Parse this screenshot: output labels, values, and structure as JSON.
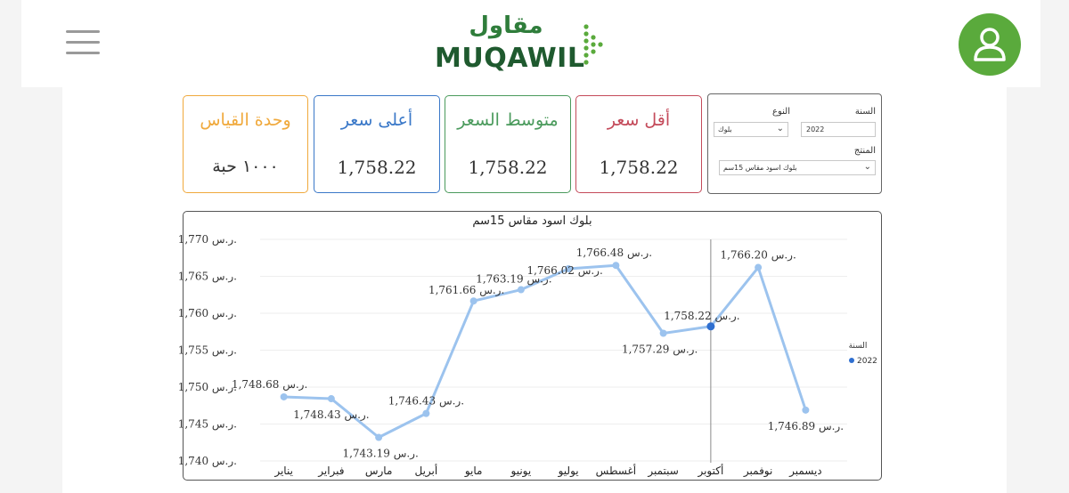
{
  "header": {
    "logo_arabic": "مقاول",
    "logo_english": "MUQAWIL"
  },
  "cards": [
    {
      "title": "وحدة القياس",
      "value": "١٠٠٠ حبة",
      "color": "#f0a93c"
    },
    {
      "title": "أعلى سعر",
      "value": "1,758.22",
      "color": "#3a78c8"
    },
    {
      "title": "متوسط السعر",
      "value": "1,758.22",
      "color": "#4a9a5c"
    },
    {
      "title": "أقل سعر",
      "value": "1,758.22",
      "color": "#c44a5a"
    }
  ],
  "filters": {
    "year_label": "السنة",
    "year_value": "2022",
    "type_label": "النوع",
    "type_value": "بلوك",
    "product_label": "المنتج",
    "product_value": "بلوك اسود مقاس 15سم"
  },
  "chart_data": {
    "type": "line",
    "title": "بلوك اسود مقاس 15سم",
    "categories": [
      "يناير",
      "فبراير",
      "مارس",
      "أبريل",
      "مايو",
      "يونيو",
      "يوليو",
      "أغسطس",
      "سبتمبر",
      "أكتوبر",
      "نوفمبر",
      "ديسمبر"
    ],
    "series": [
      {
        "name": "2022",
        "values": [
          1748.68,
          1748.43,
          1743.19,
          1746.43,
          1761.66,
          1763.19,
          1766.02,
          1766.48,
          1757.29,
          1758.22,
          1766.2,
          1746.89
        ]
      }
    ],
    "point_labels": [
      "1,748.68 ر.س.",
      "1,748.43 ر.س.",
      "1,743.19 ر.س.",
      "1,746.43 ر.س.",
      "1,761.66 ر.س.",
      "1,763.19 ر.س.",
      "1,766.02 ر.س.",
      "1,766.48 ر.س.",
      "1,757.29 ر.س.",
      "1,758.22 ر.س.",
      "1,766.20 ر.س.",
      "1,746.89 ر.س."
    ],
    "ylim": [
      1740,
      1770
    ],
    "yticks": [
      1740,
      1745,
      1750,
      1755,
      1760,
      1765,
      1770
    ],
    "ytick_labels": [
      "1,740 ر.س.",
      "1,745 ر.س.",
      "1,750 ر.س.",
      "1,755 ر.س.",
      "1,760 ر.س.",
      "1,765 ر.س.",
      "1,770 ر.س."
    ],
    "legend_title": "السنة",
    "legend_item": "2022",
    "legend_position": "right",
    "line_color": "#9cc3ee",
    "highlight_color": "#2f6fd0",
    "highlight_index": 9,
    "grid": true
  }
}
